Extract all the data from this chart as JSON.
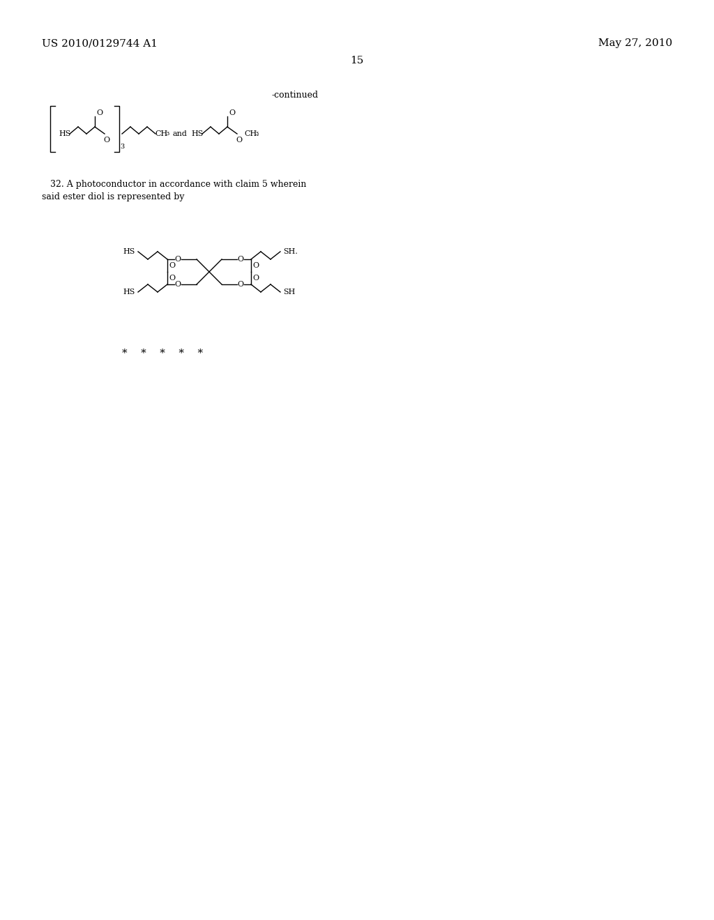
{
  "background_color": "#ffffff",
  "header_left": "US 2010/0129744 A1",
  "header_right": "May 27, 2010",
  "page_number": "15",
  "continued_label": "-continued",
  "claim_text_line1": "   32. A photoconductor in accordance with claim 5 wherein",
  "claim_text_line2": "said ester diol is represented by",
  "stars": "*    *    *    *    *",
  "font_size_header": 11,
  "font_size_body": 9,
  "font_size_chem": 8
}
